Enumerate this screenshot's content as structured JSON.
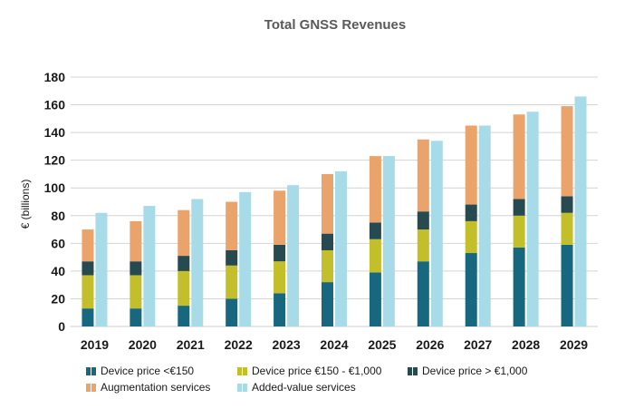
{
  "chart_data": {
    "type": "bar",
    "title": "Total GNSS Revenues",
    "ylabel": "€ (billions)",
    "ylim": [
      0,
      180
    ],
    "yticks": [
      0,
      20,
      40,
      60,
      80,
      100,
      120,
      140,
      160,
      180
    ],
    "grid": true,
    "legend_position": "bottom",
    "categories": [
      "2019",
      "2020",
      "2021",
      "2022",
      "2023",
      "2024",
      "2025",
      "2026",
      "2027",
      "2028",
      "2029"
    ],
    "stacked_series": [
      {
        "name": "Device price <€150",
        "color": "#17677f",
        "values": [
          13,
          13,
          15,
          20,
          24,
          32,
          39,
          47,
          53,
          57,
          59
        ]
      },
      {
        "name": "Device price €150 - €1,000",
        "color": "#c2bf2a",
        "values": [
          24,
          24,
          25,
          24,
          23,
          23,
          24,
          23,
          23,
          23,
          23
        ]
      },
      {
        "name": "Device price > €1,000",
        "color": "#264a4f",
        "values": [
          10,
          10,
          11,
          11,
          12,
          12,
          12,
          13,
          12,
          12,
          12
        ]
      },
      {
        "name": "Augmentation services",
        "color": "#eaa46b",
        "values": [
          23,
          29,
          33,
          35,
          39,
          43,
          48,
          52,
          57,
          61,
          65
        ]
      }
    ],
    "single_series": [
      {
        "name": "Added-value services",
        "color": "#a8dbe8",
        "values": [
          82,
          87,
          92,
          97,
          102,
          112,
          123,
          134,
          145,
          155,
          166
        ]
      }
    ]
  }
}
